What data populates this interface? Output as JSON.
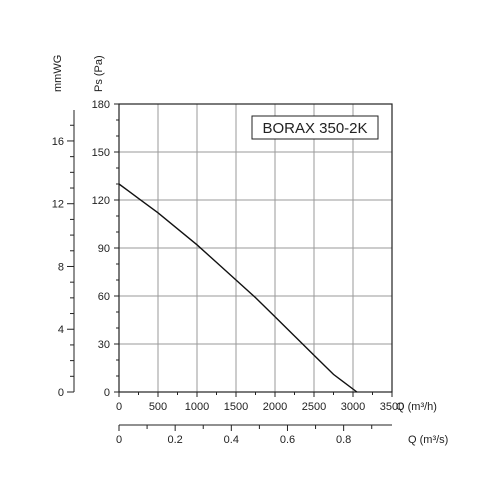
{
  "chart_data": {
    "type": "line",
    "title": "BORAX 350-2K",
    "xlabel": "Q (m³/h)",
    "ylabel": "Ps (Pa)",
    "xlim": [
      0,
      3500
    ],
    "ylim": [
      0,
      180
    ],
    "grid": true,
    "x_ticks": [
      "0",
      "500",
      "1000",
      "1500",
      "2000",
      "2500",
      "3000",
      "3500"
    ],
    "y_ticks": [
      "0",
      "30",
      "60",
      "90",
      "120",
      "150",
      "180"
    ],
    "secondary_y": {
      "label": "mmWG",
      "ticks": [
        "0",
        "4",
        "8",
        "12",
        "16"
      ],
      "values": [
        0,
        4,
        8,
        12,
        16
      ],
      "pa_per_unit": 9.80665
    },
    "secondary_x": {
      "label": "Q (m³/s)",
      "ticks": [
        "0",
        "0.2",
        "0.4",
        "0.6",
        "0.8"
      ],
      "values": [
        0,
        0.2,
        0.4,
        0.6,
        0.8
      ],
      "m3h_per_unit": 3600
    },
    "series": [
      {
        "x": [
          0,
          250,
          500,
          750,
          1000,
          1250,
          1500,
          1750,
          2000,
          2250,
          2500,
          2750,
          3050
        ],
        "y": [
          130,
          121,
          112,
          102,
          92,
          81,
          70,
          59,
          47,
          35,
          23,
          11,
          0
        ],
        "color": "#111111"
      }
    ]
  }
}
